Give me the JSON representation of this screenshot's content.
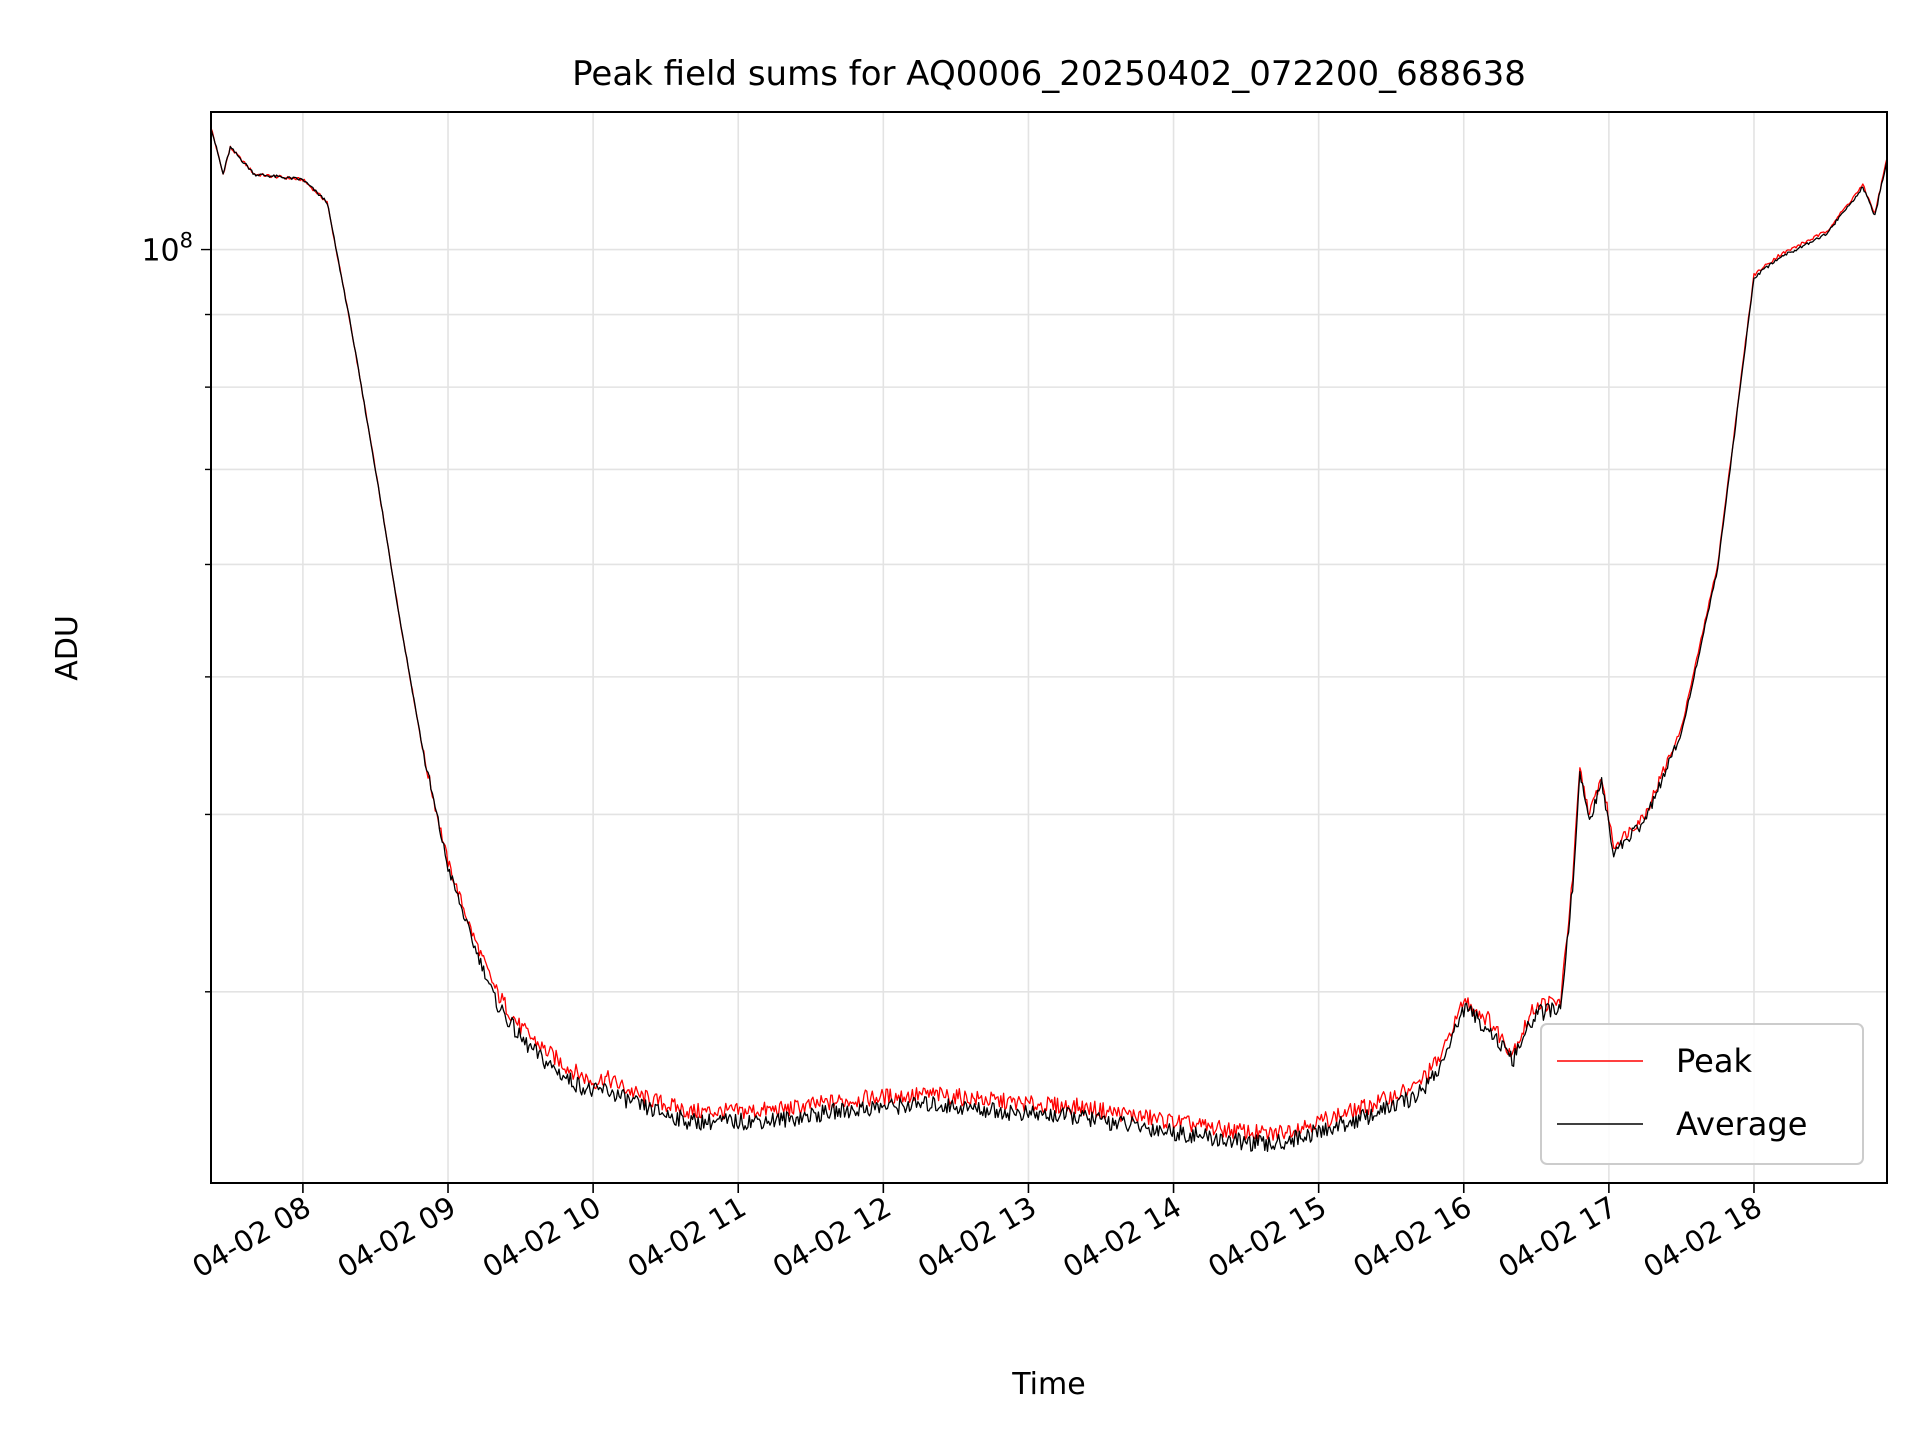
{
  "chart_data": {
    "type": "line",
    "title": "Peak field sums for AQ0006_20250402_072200_688638",
    "xlabel": "Time",
    "ylabel": "ADU",
    "y_scale": "log",
    "grid": true,
    "legend_position": "lower-right",
    "x_range": [
      "04-02 07:22",
      "04-02 18:55"
    ],
    "y_range": [
      22000000,
      125000000
    ],
    "x_ticks": [
      {
        "time": "04-02 08:00",
        "label": "04-02 08"
      },
      {
        "time": "04-02 09:00",
        "label": "04-02 09"
      },
      {
        "time": "04-02 10:00",
        "label": "04-02 10"
      },
      {
        "time": "04-02 11:00",
        "label": "04-02 11"
      },
      {
        "time": "04-02 12:00",
        "label": "04-02 12"
      },
      {
        "time": "04-02 13:00",
        "label": "04-02 13"
      },
      {
        "time": "04-02 14:00",
        "label": "04-02 14"
      },
      {
        "time": "04-02 15:00",
        "label": "04-02 15"
      },
      {
        "time": "04-02 16:00",
        "label": "04-02 16"
      },
      {
        "time": "04-02 17:00",
        "label": "04-02 17"
      },
      {
        "time": "04-02 18:00",
        "label": "04-02 18"
      }
    ],
    "y_major_ticks": [
      {
        "value": 100000000,
        "base": "10",
        "exponent": "8"
      }
    ],
    "y_minor_ticks": [
      30000000,
      40000000,
      50000000,
      60000000,
      70000000,
      80000000,
      90000000
    ],
    "series": [
      {
        "name": "Peak",
        "color": "#ff0000",
        "points": [
          [
            "04-02 07:22",
            122000000
          ],
          [
            "04-02 07:27",
            113000000
          ],
          [
            "04-02 07:30",
            118000000
          ],
          [
            "04-02 07:40",
            113000000
          ],
          [
            "04-02 08:00",
            112000000
          ],
          [
            "04-02 08:10",
            108000000
          ],
          [
            "04-02 08:20",
            88000000
          ],
          [
            "04-02 08:30",
            70000000
          ],
          [
            "04-02 08:40",
            55000000
          ],
          [
            "04-02 08:50",
            44000000
          ],
          [
            "04-02 09:00",
            37000000
          ],
          [
            "04-02 09:10",
            33000000
          ],
          [
            "04-02 09:20",
            30000000
          ],
          [
            "04-02 09:30",
            28300000
          ],
          [
            "04-02 09:40",
            27300000
          ],
          [
            "04-02 09:50",
            26500000
          ],
          [
            "04-02 10:00",
            25900000
          ],
          [
            "04-02 10:05",
            26100000
          ],
          [
            "04-02 10:20",
            25300000
          ],
          [
            "04-02 10:40",
            24700000
          ],
          [
            "04-02 11:00",
            24700000
          ],
          [
            "04-02 11:20",
            24800000
          ],
          [
            "04-02 11:40",
            25100000
          ],
          [
            "04-02 12:00",
            25300000
          ],
          [
            "04-02 12:20",
            25400000
          ],
          [
            "04-02 12:40",
            25200000
          ],
          [
            "04-02 13:00",
            25000000
          ],
          [
            "04-02 13:20",
            24900000
          ],
          [
            "04-02 13:40",
            24600000
          ],
          [
            "04-02 14:00",
            24300000
          ],
          [
            "04-02 14:20",
            24000000
          ],
          [
            "04-02 14:40",
            23800000
          ],
          [
            "04-02 15:00",
            24300000
          ],
          [
            "04-02 15:20",
            24900000
          ],
          [
            "04-02 15:40",
            25700000
          ],
          [
            "04-02 15:50",
            26900000
          ],
          [
            "04-02 16:00",
            29600000
          ],
          [
            "04-02 16:10",
            28700000
          ],
          [
            "04-02 16:20",
            27200000
          ],
          [
            "04-02 16:30",
            29400000
          ],
          [
            "04-02 16:40",
            29500000
          ],
          [
            "04-02 16:45",
            36000000
          ],
          [
            "04-02 16:48",
            43000000
          ],
          [
            "04-02 16:52",
            40000000
          ],
          [
            "04-02 16:57",
            42500000
          ],
          [
            "04-02 17:02",
            38000000
          ],
          [
            "04-02 17:15",
            40000000
          ],
          [
            "04-02 17:30",
            46000000
          ],
          [
            "04-02 17:45",
            60000000
          ],
          [
            "04-02 18:00",
            96000000
          ],
          [
            "04-02 18:10",
            99000000
          ],
          [
            "04-02 18:30",
            103000000
          ],
          [
            "04-02 18:45",
            111000000
          ],
          [
            "04-02 18:50",
            106000000
          ],
          [
            "04-02 18:55",
            116000000
          ]
        ]
      },
      {
        "name": "Average",
        "color": "#000000",
        "points": [
          [
            "04-02 07:22",
            122000000
          ],
          [
            "04-02 07:27",
            113000000
          ],
          [
            "04-02 07:30",
            118000000
          ],
          [
            "04-02 07:40",
            113000000
          ],
          [
            "04-02 08:00",
            112000000
          ],
          [
            "04-02 08:10",
            108000000
          ],
          [
            "04-02 08:20",
            88000000
          ],
          [
            "04-02 08:30",
            70000000
          ],
          [
            "04-02 08:40",
            55000000
          ],
          [
            "04-02 08:50",
            44000000
          ],
          [
            "04-02 09:00",
            36700000
          ],
          [
            "04-02 09:10",
            32600000
          ],
          [
            "04-02 09:20",
            29500000
          ],
          [
            "04-02 09:30",
            27800000
          ],
          [
            "04-02 09:40",
            26800000
          ],
          [
            "04-02 09:50",
            26000000
          ],
          [
            "04-02 10:00",
            25500000
          ],
          [
            "04-02 10:05",
            25600000
          ],
          [
            "04-02 10:20",
            24900000
          ],
          [
            "04-02 10:40",
            24300000
          ],
          [
            "04-02 11:00",
            24300000
          ],
          [
            "04-02 11:20",
            24400000
          ],
          [
            "04-02 11:40",
            24700000
          ],
          [
            "04-02 12:00",
            24900000
          ],
          [
            "04-02 12:20",
            25000000
          ],
          [
            "04-02 12:40",
            24800000
          ],
          [
            "04-02 13:00",
            24600000
          ],
          [
            "04-02 13:20",
            24500000
          ],
          [
            "04-02 13:40",
            24200000
          ],
          [
            "04-02 14:00",
            23900000
          ],
          [
            "04-02 14:20",
            23600000
          ],
          [
            "04-02 14:40",
            23400000
          ],
          [
            "04-02 15:00",
            23900000
          ],
          [
            "04-02 15:20",
            24500000
          ],
          [
            "04-02 15:40",
            25300000
          ],
          [
            "04-02 15:50",
            26500000
          ],
          [
            "04-02 16:00",
            29200000
          ],
          [
            "04-02 16:10",
            28300000
          ],
          [
            "04-02 16:20",
            26800000
          ],
          [
            "04-02 16:30",
            29000000
          ],
          [
            "04-02 16:40",
            29100000
          ],
          [
            "04-02 16:45",
            35600000
          ],
          [
            "04-02 16:48",
            42600000
          ],
          [
            "04-02 16:52",
            39600000
          ],
          [
            "04-02 16:57",
            42100000
          ],
          [
            "04-02 17:02",
            37600000
          ],
          [
            "04-02 17:15",
            39600000
          ],
          [
            "04-02 17:30",
            45600000
          ],
          [
            "04-02 17:45",
            59600000
          ],
          [
            "04-02 18:00",
            95600000
          ],
          [
            "04-02 18:10",
            98600000
          ],
          [
            "04-02 18:30",
            102600000
          ],
          [
            "04-02 18:45",
            110600000
          ],
          [
            "04-02 18:50",
            105600000
          ],
          [
            "04-02 18:55",
            115600000
          ]
        ]
      }
    ]
  }
}
